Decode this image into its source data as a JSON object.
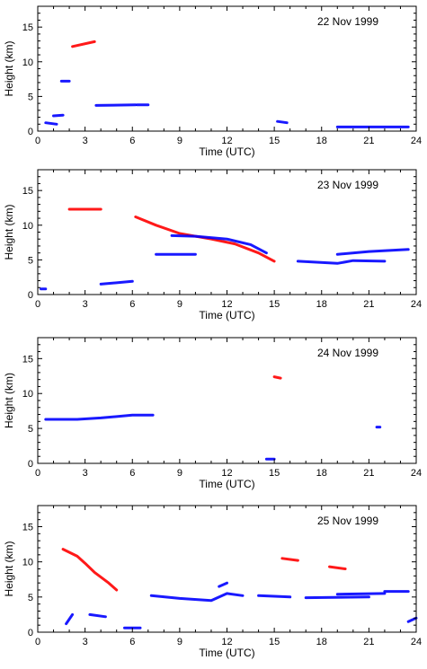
{
  "chart_data": [
    {
      "type": "scatter",
      "title": "22 Nov 1999",
      "xlabel": "Time (UTC)",
      "ylabel": "Height (km)",
      "xlim": [
        0,
        24
      ],
      "ylim": [
        0,
        18
      ],
      "x_ticks": [
        0,
        3,
        6,
        9,
        12,
        15,
        18,
        21,
        24
      ],
      "y_ticks": [
        0,
        5,
        10,
        15
      ],
      "grid": false,
      "series": [
        {
          "color": "#ff0000",
          "segments": [
            {
              "x": [
                2.2,
                3.6
              ],
              "y": [
                12.2,
                12.9
              ]
            }
          ]
        },
        {
          "color": "#0000ff",
          "segments": [
            {
              "x": [
                1.5,
                2.0
              ],
              "y": [
                7.2,
                7.2
              ]
            },
            {
              "x": [
                3.7,
                6.2
              ],
              "y": [
                3.7,
                3.8
              ]
            },
            {
              "x": [
                6.3,
                7.0
              ],
              "y": [
                3.8,
                3.8
              ]
            },
            {
              "x": [
                0.5,
                1.2
              ],
              "y": [
                1.2,
                1.0
              ]
            },
            {
              "x": [
                1.0,
                1.6
              ],
              "y": [
                2.2,
                2.3
              ]
            },
            {
              "x": [
                15.2,
                15.8
              ],
              "y": [
                1.4,
                1.2
              ]
            },
            {
              "x": [
                19.0,
                23.5
              ],
              "y": [
                0.6,
                0.6
              ]
            }
          ]
        }
      ]
    },
    {
      "type": "scatter",
      "title": "23 Nov 1999",
      "xlabel": "Time (UTC)",
      "ylabel": "Height (km)",
      "xlim": [
        0,
        24
      ],
      "ylim": [
        0,
        18
      ],
      "x_ticks": [
        0,
        3,
        6,
        9,
        12,
        15,
        18,
        21,
        24
      ],
      "y_ticks": [
        0,
        5,
        10,
        15
      ],
      "grid": false,
      "series": [
        {
          "color": "#ff0000",
          "segments": [
            {
              "x": [
                6.2,
                7.5,
                9.0,
                11.0,
                12.5,
                14.0,
                15.0
              ],
              "y": [
                11.2,
                10.0,
                8.8,
                8.0,
                7.3,
                6.0,
                4.8
              ]
            },
            {
              "x": [
                2.0,
                4.0
              ],
              "y": [
                12.3,
                12.3
              ]
            }
          ]
        },
        {
          "color": "#0000ff",
          "segments": [
            {
              "x": [
                8.5,
                10.0,
                12.0,
                13.5,
                14.5
              ],
              "y": [
                8.5,
                8.4,
                8.0,
                7.2,
                6.0
              ]
            },
            {
              "x": [
                7.5,
                10.0
              ],
              "y": [
                5.8,
                5.8
              ]
            },
            {
              "x": [
                16.5,
                19.0,
                20.0,
                22.0
              ],
              "y": [
                4.8,
                4.5,
                4.9,
                4.8
              ]
            },
            {
              "x": [
                19.0,
                21.0,
                23.5
              ],
              "y": [
                5.8,
                6.2,
                6.5
              ]
            },
            {
              "x": [
                4.0,
                6.0
              ],
              "y": [
                1.5,
                1.9
              ]
            },
            {
              "x": [
                0.2,
                0.5
              ],
              "y": [
                0.8,
                0.8
              ]
            }
          ]
        }
      ]
    },
    {
      "type": "scatter",
      "title": "24 Nov 1999",
      "xlabel": "Time (UTC)",
      "ylabel": "Height (km)",
      "xlim": [
        0,
        24
      ],
      "ylim": [
        0,
        18
      ],
      "x_ticks": [
        0,
        3,
        6,
        9,
        12,
        15,
        18,
        21,
        24
      ],
      "y_ticks": [
        0,
        5,
        10,
        15
      ],
      "grid": false,
      "series": [
        {
          "color": "#ff0000",
          "segments": [
            {
              "x": [
                15.0,
                15.4
              ],
              "y": [
                12.4,
                12.2
              ]
            }
          ]
        },
        {
          "color": "#0000ff",
          "segments": [
            {
              "x": [
                0.5,
                2.5,
                4.0,
                6.0,
                7.3
              ],
              "y": [
                6.3,
                6.3,
                6.5,
                6.9,
                6.9
              ]
            },
            {
              "x": [
                14.5,
                15.0
              ],
              "y": [
                0.6,
                0.6
              ]
            },
            {
              "x": [
                21.5,
                21.7
              ],
              "y": [
                5.2,
                5.2
              ]
            }
          ]
        }
      ]
    },
    {
      "type": "scatter",
      "title": "25 Nov 1999",
      "xlabel": "Time (UTC)",
      "ylabel": "Height (km)",
      "xlim": [
        0,
        24
      ],
      "ylim": [
        0,
        18
      ],
      "x_ticks": [
        0,
        3,
        6,
        9,
        12,
        15,
        18,
        21,
        24
      ],
      "y_ticks": [
        0,
        5,
        10,
        15
      ],
      "grid": false,
      "series": [
        {
          "color": "#ff0000",
          "segments": [
            {
              "x": [
                1.6,
                2.5,
                3.0,
                3.6,
                4.5,
                5.0
              ],
              "y": [
                11.8,
                10.8,
                9.8,
                8.5,
                7.0,
                6.0
              ]
            },
            {
              "x": [
                15.5,
                16.5
              ],
              "y": [
                10.5,
                10.2
              ]
            },
            {
              "x": [
                18.5,
                19.5
              ],
              "y": [
                9.3,
                9.0
              ]
            }
          ]
        },
        {
          "color": "#0000ff",
          "segments": [
            {
              "x": [
                7.2,
                9.0,
                11.0,
                12.0,
                13.0
              ],
              "y": [
                5.2,
                4.8,
                4.5,
                5.5,
                5.2
              ]
            },
            {
              "x": [
                11.5,
                12.0
              ],
              "y": [
                6.5,
                7.0
              ]
            },
            {
              "x": [
                14.0,
                16.0
              ],
              "y": [
                5.2,
                5.0
              ]
            },
            {
              "x": [
                17.0,
                21.0
              ],
              "y": [
                4.9,
                5.0
              ]
            },
            {
              "x": [
                19.0,
                22.0
              ],
              "y": [
                5.4,
                5.5
              ]
            },
            {
              "x": [
                22.0,
                23.5
              ],
              "y": [
                5.8,
                5.8
              ]
            },
            {
              "x": [
                3.3,
                4.3
              ],
              "y": [
                2.5,
                2.2
              ]
            },
            {
              "x": [
                5.5,
                6.5
              ],
              "y": [
                0.6,
                0.6
              ]
            },
            {
              "x": [
                1.8,
                2.2
              ],
              "y": [
                1.2,
                2.5
              ]
            },
            {
              "x": [
                23.5,
                24
              ],
              "y": [
                1.5,
                2.0
              ]
            }
          ]
        }
      ]
    }
  ]
}
